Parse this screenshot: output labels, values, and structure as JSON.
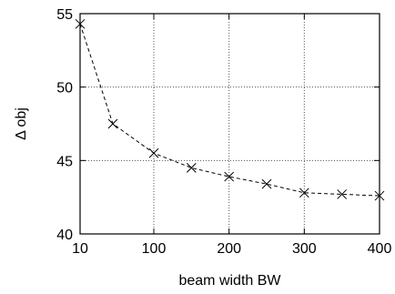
{
  "chart_data": {
    "type": "line",
    "title": "",
    "xlabel": "beam width BW",
    "ylabel": "Δ obj",
    "x_ticks": [
      10,
      100,
      200,
      300,
      400
    ],
    "x_tick_labels": [
      "10",
      "100",
      "200",
      "300",
      "400"
    ],
    "y_ticks": [
      40,
      45,
      50,
      55
    ],
    "y_tick_labels": [
      "40",
      "45",
      "50",
      "55"
    ],
    "xlim": [
      10,
      400
    ],
    "ylim": [
      40,
      55
    ],
    "grid": true,
    "series": [
      {
        "marker": "x",
        "line_style": "dashed",
        "color": "#000000",
        "x": [
          10,
          50,
          100,
          150,
          200,
          250,
          300,
          350,
          400
        ],
        "y": [
          54.3,
          47.5,
          45.5,
          44.5,
          43.9,
          43.4,
          42.8,
          42.7,
          42.6
        ]
      }
    ]
  }
}
